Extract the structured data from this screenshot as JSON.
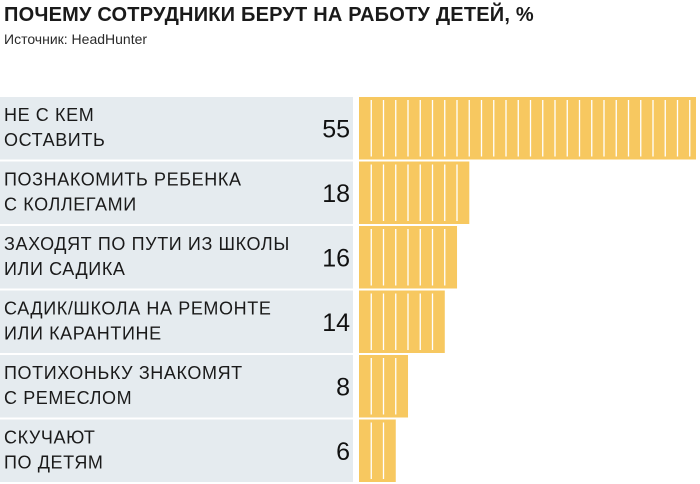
{
  "header": {
    "title": "ПОЧЕМУ СОТРУДНИКИ БЕРУТ НА РАБОТУ ДЕТЕЙ, %",
    "source": "Источник: HeadHunter"
  },
  "colors": {
    "bar": "#f7c860",
    "bar_segment_line": "#ffffff",
    "row_band": "#e5ebef"
  },
  "chart_data": {
    "type": "bar",
    "orientation": "horizontal",
    "title": "ПОЧЕМУ СОТРУДНИКИ БЕРУТ НА РАБОТУ ДЕТЕЙ, %",
    "subtitle": "Источник: HeadHunter",
    "unit": "%",
    "xlim": [
      0,
      55
    ],
    "grid": false,
    "legend": "none",
    "categories": [
      [
        "НЕ С КЕМ",
        "ОСТАВИТЬ"
      ],
      [
        "ПОЗНАКОМИТЬ РЕБЕНКА",
        "С КОЛЛЕГАМИ"
      ],
      [
        "ЗАХОДЯТ ПО ПУТИ ИЗ ШКОЛЫ",
        "ИЛИ САДИКА"
      ],
      [
        "САДИК/ШКОЛА НА РЕМОНТЕ",
        "ИЛИ КАРАНТИНЕ"
      ],
      [
        "ПОТИХОНЬКУ ЗНАКОМЯТ",
        "С РЕМЕСЛОМ"
      ],
      [
        "СКУЧАЮТ",
        "ПО ДЕТЯМ"
      ]
    ],
    "values": [
      55,
      18,
      16,
      14,
      8,
      6
    ]
  }
}
